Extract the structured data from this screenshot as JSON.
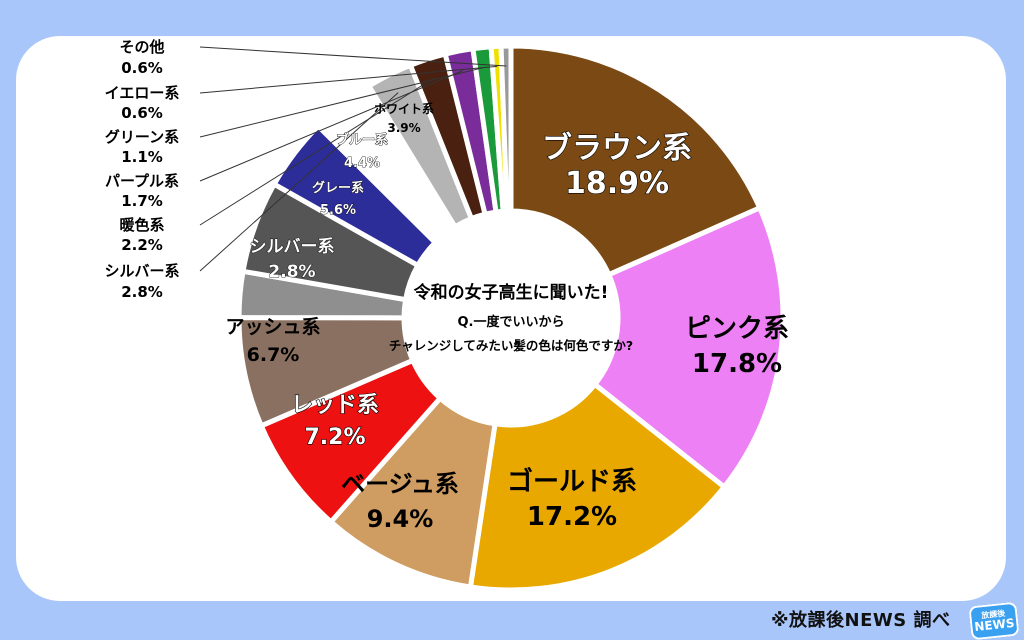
{
  "chart_data": {
    "type": "pie",
    "donut": true,
    "title": "令和の女子高生に聞いた!",
    "question_line1": "Q.一度でいいから",
    "question_line2": "チャレンジしてみたい髪の色は何色ですか?",
    "slices": [
      {
        "label": "ブラウン系",
        "value": 18.9,
        "display": "18.9%",
        "color": "#7b4a14",
        "text_color": "#ffffff"
      },
      {
        "label": "ピンク系",
        "value": 17.8,
        "display": "17.8%",
        "color": "#ee80f5",
        "text_color": "#000000"
      },
      {
        "label": "ゴールド系",
        "value": 17.2,
        "display": "17.2%",
        "color": "#e8a800",
        "text_color": "#000000"
      },
      {
        "label": "ベージュ系",
        "value": 9.4,
        "display": "9.4%",
        "color": "#cf9c62",
        "text_color": "#000000"
      },
      {
        "label": "レッド系",
        "value": 7.2,
        "display": "7.2%",
        "color": "#ee1111",
        "text_color": "#ffffff"
      },
      {
        "label": "アッシュ系",
        "value": 6.7,
        "display": "6.7%",
        "color": "#8a7060",
        "text_color": "#000000"
      },
      {
        "label": "シルバー系",
        "value": 2.8,
        "display": "2.8%",
        "color": "#8f8f8f",
        "text_color": "#ffffff"
      },
      {
        "label": "グレー系",
        "value": 5.6,
        "display": "5.6%",
        "color": "#555555",
        "text_color": "#ffffff"
      },
      {
        "label": "ブルー系",
        "value": 4.4,
        "display": "4.4%",
        "color": "#2d2d99",
        "text_color": "#ffffff"
      },
      {
        "label": "ホワイト系",
        "value": 3.9,
        "display": "3.9%",
        "color": "#ffffff",
        "text_color": "#000000"
      },
      {
        "label": "シルバー系",
        "value": 2.8,
        "display": "2.8%",
        "color": "#b4b4b4",
        "text_color": "#000000"
      },
      {
        "label": "暖色系",
        "value": 2.2,
        "display": "2.2%",
        "color": "#4a2110",
        "text_color": "#000000"
      },
      {
        "label": "パープル系",
        "value": 1.7,
        "display": "1.7%",
        "color": "#7a2d9a",
        "text_color": "#000000"
      },
      {
        "label": "グリーン系",
        "value": 1.1,
        "display": "1.1%",
        "color": "#1a9a3a",
        "text_color": "#000000"
      },
      {
        "label": "イエロー系",
        "value": 0.6,
        "display": "0.6%",
        "color": "#f0e000",
        "text_color": "#000000"
      },
      {
        "label": "その他",
        "value": 0.6,
        "display": "0.6%",
        "color": "#999999",
        "text_color": "#000000"
      }
    ]
  },
  "footer": {
    "credit": "※放課後NEWS 調べ",
    "logo_top": "放課後",
    "logo_bottom": "NEWS"
  }
}
